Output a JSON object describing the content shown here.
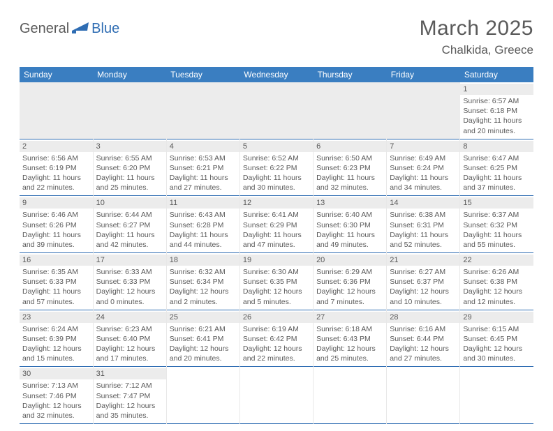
{
  "logo": {
    "part1": "General",
    "part2": "Blue"
  },
  "title": {
    "month": "March 2025",
    "location": "Chalkida, Greece"
  },
  "colors": {
    "header_bg": "#3a7ec1",
    "accent_line": "#2f6db3",
    "daynum_bg": "#ececec",
    "text": "#5a5a5a"
  },
  "weekdays": [
    "Sunday",
    "Monday",
    "Tuesday",
    "Wednesday",
    "Thursday",
    "Friday",
    "Saturday"
  ],
  "weeks": [
    [
      null,
      null,
      null,
      null,
      null,
      null,
      {
        "n": "1",
        "sr": "Sunrise: 6:57 AM",
        "ss": "Sunset: 6:18 PM",
        "dl": "Daylight: 11 hours and 20 minutes."
      }
    ],
    [
      {
        "n": "2",
        "sr": "Sunrise: 6:56 AM",
        "ss": "Sunset: 6:19 PM",
        "dl": "Daylight: 11 hours and 22 minutes."
      },
      {
        "n": "3",
        "sr": "Sunrise: 6:55 AM",
        "ss": "Sunset: 6:20 PM",
        "dl": "Daylight: 11 hours and 25 minutes."
      },
      {
        "n": "4",
        "sr": "Sunrise: 6:53 AM",
        "ss": "Sunset: 6:21 PM",
        "dl": "Daylight: 11 hours and 27 minutes."
      },
      {
        "n": "5",
        "sr": "Sunrise: 6:52 AM",
        "ss": "Sunset: 6:22 PM",
        "dl": "Daylight: 11 hours and 30 minutes."
      },
      {
        "n": "6",
        "sr": "Sunrise: 6:50 AM",
        "ss": "Sunset: 6:23 PM",
        "dl": "Daylight: 11 hours and 32 minutes."
      },
      {
        "n": "7",
        "sr": "Sunrise: 6:49 AM",
        "ss": "Sunset: 6:24 PM",
        "dl": "Daylight: 11 hours and 34 minutes."
      },
      {
        "n": "8",
        "sr": "Sunrise: 6:47 AM",
        "ss": "Sunset: 6:25 PM",
        "dl": "Daylight: 11 hours and 37 minutes."
      }
    ],
    [
      {
        "n": "9",
        "sr": "Sunrise: 6:46 AM",
        "ss": "Sunset: 6:26 PM",
        "dl": "Daylight: 11 hours and 39 minutes."
      },
      {
        "n": "10",
        "sr": "Sunrise: 6:44 AM",
        "ss": "Sunset: 6:27 PM",
        "dl": "Daylight: 11 hours and 42 minutes."
      },
      {
        "n": "11",
        "sr": "Sunrise: 6:43 AM",
        "ss": "Sunset: 6:28 PM",
        "dl": "Daylight: 11 hours and 44 minutes."
      },
      {
        "n": "12",
        "sr": "Sunrise: 6:41 AM",
        "ss": "Sunset: 6:29 PM",
        "dl": "Daylight: 11 hours and 47 minutes."
      },
      {
        "n": "13",
        "sr": "Sunrise: 6:40 AM",
        "ss": "Sunset: 6:30 PM",
        "dl": "Daylight: 11 hours and 49 minutes."
      },
      {
        "n": "14",
        "sr": "Sunrise: 6:38 AM",
        "ss": "Sunset: 6:31 PM",
        "dl": "Daylight: 11 hours and 52 minutes."
      },
      {
        "n": "15",
        "sr": "Sunrise: 6:37 AM",
        "ss": "Sunset: 6:32 PM",
        "dl": "Daylight: 11 hours and 55 minutes."
      }
    ],
    [
      {
        "n": "16",
        "sr": "Sunrise: 6:35 AM",
        "ss": "Sunset: 6:33 PM",
        "dl": "Daylight: 11 hours and 57 minutes."
      },
      {
        "n": "17",
        "sr": "Sunrise: 6:33 AM",
        "ss": "Sunset: 6:33 PM",
        "dl": "Daylight: 12 hours and 0 minutes."
      },
      {
        "n": "18",
        "sr": "Sunrise: 6:32 AM",
        "ss": "Sunset: 6:34 PM",
        "dl": "Daylight: 12 hours and 2 minutes."
      },
      {
        "n": "19",
        "sr": "Sunrise: 6:30 AM",
        "ss": "Sunset: 6:35 PM",
        "dl": "Daylight: 12 hours and 5 minutes."
      },
      {
        "n": "20",
        "sr": "Sunrise: 6:29 AM",
        "ss": "Sunset: 6:36 PM",
        "dl": "Daylight: 12 hours and 7 minutes."
      },
      {
        "n": "21",
        "sr": "Sunrise: 6:27 AM",
        "ss": "Sunset: 6:37 PM",
        "dl": "Daylight: 12 hours and 10 minutes."
      },
      {
        "n": "22",
        "sr": "Sunrise: 6:26 AM",
        "ss": "Sunset: 6:38 PM",
        "dl": "Daylight: 12 hours and 12 minutes."
      }
    ],
    [
      {
        "n": "23",
        "sr": "Sunrise: 6:24 AM",
        "ss": "Sunset: 6:39 PM",
        "dl": "Daylight: 12 hours and 15 minutes."
      },
      {
        "n": "24",
        "sr": "Sunrise: 6:23 AM",
        "ss": "Sunset: 6:40 PM",
        "dl": "Daylight: 12 hours and 17 minutes."
      },
      {
        "n": "25",
        "sr": "Sunrise: 6:21 AM",
        "ss": "Sunset: 6:41 PM",
        "dl": "Daylight: 12 hours and 20 minutes."
      },
      {
        "n": "26",
        "sr": "Sunrise: 6:19 AM",
        "ss": "Sunset: 6:42 PM",
        "dl": "Daylight: 12 hours and 22 minutes."
      },
      {
        "n": "27",
        "sr": "Sunrise: 6:18 AM",
        "ss": "Sunset: 6:43 PM",
        "dl": "Daylight: 12 hours and 25 minutes."
      },
      {
        "n": "28",
        "sr": "Sunrise: 6:16 AM",
        "ss": "Sunset: 6:44 PM",
        "dl": "Daylight: 12 hours and 27 minutes."
      },
      {
        "n": "29",
        "sr": "Sunrise: 6:15 AM",
        "ss": "Sunset: 6:45 PM",
        "dl": "Daylight: 12 hours and 30 minutes."
      }
    ],
    [
      {
        "n": "30",
        "sr": "Sunrise: 7:13 AM",
        "ss": "Sunset: 7:46 PM",
        "dl": "Daylight: 12 hours and 32 minutes."
      },
      {
        "n": "31",
        "sr": "Sunrise: 7:12 AM",
        "ss": "Sunset: 7:47 PM",
        "dl": "Daylight: 12 hours and 35 minutes."
      },
      null,
      null,
      null,
      null,
      null
    ]
  ]
}
